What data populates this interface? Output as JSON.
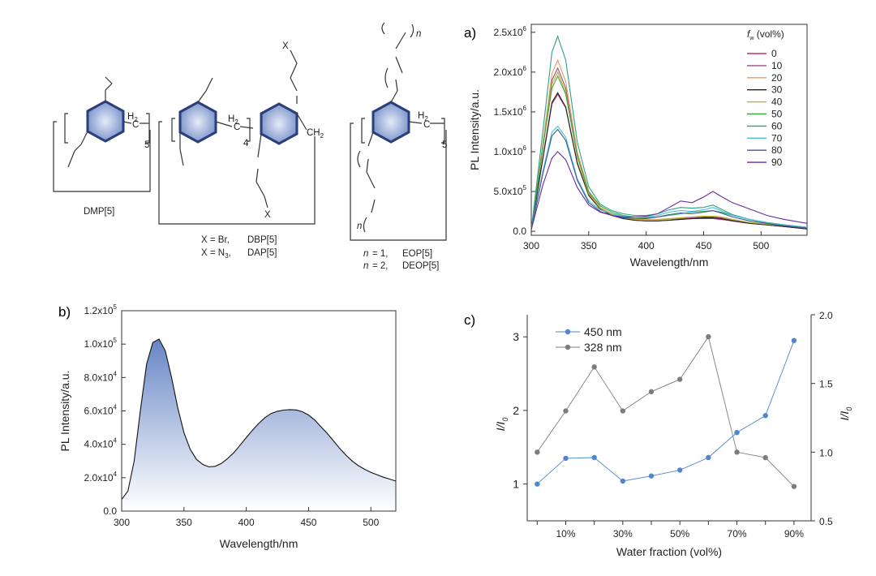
{
  "colors": {
    "ring_fill": "#9fb1d6",
    "ring_stroke": "#2a3f7a",
    "fill_gradient_top": "#5f7fc1",
    "series_450": "#4f86d0",
    "series_328": "#7d7d7d"
  },
  "structures": {
    "dmp": {
      "name": "DMP[5]",
      "subscript": "5",
      "h2": "H2",
      "h2_base": "H",
      "h2_sub": "2",
      "c": "C"
    },
    "dbp": {
      "subscript": "4",
      "h2_base": "H",
      "h2_sub": "2",
      "c": "C",
      "ch2": "CH2",
      "ch2_base": "CH",
      "ch2_sub": "2",
      "x": "X",
      "line1_x": "X = Br,",
      "line1_name": "DBP[5]",
      "line2_x_base": "X = N",
      "line2_x_sub": "3",
      "line2_x_end": ",",
      "line2_name": "DAP[5]"
    },
    "eop": {
      "subscript": "5",
      "n": "n",
      "h2_base": "H",
      "h2_sub": "2",
      "c": "C",
      "line1_n": "n",
      "line1_eq": "= 1,",
      "line1_name": "EOP[5]",
      "line2_n": "n",
      "line2_eq": "= 2,",
      "line2_name": "DEOP[5]"
    }
  },
  "panels": {
    "a_label": "a)",
    "b_label": "b)",
    "c_label": "c)"
  },
  "chart_data": [
    {
      "id": "a",
      "type": "line",
      "xlabel": "Wavelength/nm",
      "ylabel": "PL Intensity/a.u.",
      "xlim": [
        300,
        540
      ],
      "ylim": [
        -0.05,
        2.6
      ],
      "y_unit": "×10^6 a.u.",
      "x_ticks": [
        300,
        350,
        400,
        450,
        500
      ],
      "y_ticks": [
        {
          "v": 0.0,
          "base": "0.0",
          "exp": ""
        },
        {
          "v": 0.5,
          "base": "5.0x10",
          "exp": "5"
        },
        {
          "v": 1.0,
          "base": "1.0x10",
          "exp": "6"
        },
        {
          "v": 1.5,
          "base": "1.5x10",
          "exp": "6"
        },
        {
          "v": 2.0,
          "base": "2.0x10",
          "exp": "6"
        },
        {
          "v": 2.5,
          "base": "2.5x10",
          "exp": "6"
        }
      ],
      "legend": {
        "title_base": "f",
        "title_sub": "w",
        "title_rest": " (vol%)",
        "placement": "top-right"
      },
      "x": [
        300,
        310,
        318,
        323,
        330,
        340,
        350,
        360,
        370,
        380,
        390,
        400,
        410,
        420,
        430,
        440,
        450,
        458,
        465,
        475,
        490,
        505,
        520,
        540
      ],
      "series": [
        {
          "name": "0",
          "color": "#c0306a",
          "values": [
            0.02,
            0.9,
            1.6,
            1.72,
            1.55,
            0.85,
            0.45,
            0.28,
            0.2,
            0.16,
            0.14,
            0.13,
            0.13,
            0.14,
            0.15,
            0.16,
            0.16,
            0.16,
            0.15,
            0.13,
            0.1,
            0.08,
            0.06,
            0.03
          ]
        },
        {
          "name": "10",
          "color": "#a24a8a",
          "values": [
            0.02,
            1.05,
            1.9,
            2.05,
            1.8,
            0.95,
            0.48,
            0.29,
            0.21,
            0.17,
            0.15,
            0.14,
            0.14,
            0.15,
            0.16,
            0.17,
            0.18,
            0.18,
            0.17,
            0.14,
            0.11,
            0.08,
            0.06,
            0.03
          ]
        },
        {
          "name": "20",
          "color": "#d9a060",
          "values": [
            0.02,
            1.1,
            1.98,
            2.15,
            1.88,
            1.0,
            0.5,
            0.3,
            0.22,
            0.18,
            0.16,
            0.15,
            0.15,
            0.16,
            0.17,
            0.18,
            0.19,
            0.19,
            0.18,
            0.15,
            0.11,
            0.09,
            0.07,
            0.04
          ]
        },
        {
          "name": "30",
          "color": "#222222",
          "values": [
            0.02,
            0.92,
            1.62,
            1.74,
            1.56,
            0.86,
            0.45,
            0.28,
            0.2,
            0.16,
            0.14,
            0.13,
            0.13,
            0.14,
            0.15,
            0.16,
            0.17,
            0.17,
            0.16,
            0.13,
            0.1,
            0.08,
            0.06,
            0.03
          ]
        },
        {
          "name": "40",
          "color": "#b7b32a",
          "values": [
            0.02,
            1.05,
            1.85,
            2.0,
            1.75,
            0.93,
            0.47,
            0.29,
            0.21,
            0.17,
            0.15,
            0.14,
            0.14,
            0.15,
            0.17,
            0.18,
            0.19,
            0.19,
            0.18,
            0.15,
            0.11,
            0.09,
            0.07,
            0.04
          ]
        },
        {
          "name": "50",
          "color": "#3fa53f",
          "values": [
            0.02,
            1.05,
            1.8,
            1.95,
            1.72,
            0.95,
            0.5,
            0.32,
            0.24,
            0.2,
            0.18,
            0.17,
            0.18,
            0.2,
            0.22,
            0.24,
            0.25,
            0.26,
            0.24,
            0.2,
            0.15,
            0.11,
            0.08,
            0.05
          ]
        },
        {
          "name": "60",
          "color": "#2aa088",
          "values": [
            0.02,
            1.25,
            2.25,
            2.45,
            2.15,
            1.12,
            0.56,
            0.34,
            0.26,
            0.22,
            0.2,
            0.2,
            0.22,
            0.27,
            0.3,
            0.29,
            0.3,
            0.33,
            0.28,
            0.21,
            0.15,
            0.11,
            0.08,
            0.05
          ]
        },
        {
          "name": "70",
          "color": "#46c1d3",
          "values": [
            0.02,
            0.75,
            1.25,
            1.32,
            1.18,
            0.66,
            0.38,
            0.27,
            0.22,
            0.19,
            0.18,
            0.18,
            0.2,
            0.24,
            0.26,
            0.25,
            0.27,
            0.3,
            0.26,
            0.2,
            0.15,
            0.11,
            0.08,
            0.05
          ]
        },
        {
          "name": "80",
          "color": "#3c5a9a",
          "values": [
            0.02,
            0.72,
            1.2,
            1.28,
            1.14,
            0.64,
            0.36,
            0.25,
            0.2,
            0.17,
            0.16,
            0.16,
            0.18,
            0.21,
            0.23,
            0.22,
            0.24,
            0.26,
            0.23,
            0.18,
            0.13,
            0.1,
            0.07,
            0.04
          ]
        },
        {
          "name": "90",
          "color": "#6a2aa0",
          "values": [
            0.02,
            0.58,
            0.92,
            1.0,
            0.9,
            0.55,
            0.33,
            0.24,
            0.2,
            0.18,
            0.18,
            0.19,
            0.22,
            0.3,
            0.38,
            0.36,
            0.43,
            0.5,
            0.44,
            0.36,
            0.28,
            0.2,
            0.15,
            0.1
          ]
        }
      ]
    },
    {
      "id": "b",
      "type": "area",
      "xlabel": "Wavelength/nm",
      "ylabel": "PL Intensity/a.u.",
      "xlim": [
        300,
        520
      ],
      "ylim": [
        0,
        120000
      ],
      "x_ticks": [
        300,
        350,
        400,
        450,
        500
      ],
      "y_ticks": [
        {
          "v": 0,
          "base": "0.0",
          "exp": ""
        },
        {
          "v": 20000,
          "base": "2.0x10",
          "exp": "4"
        },
        {
          "v": 40000,
          "base": "4.0x10",
          "exp": "4"
        },
        {
          "v": 60000,
          "base": "6.0x10",
          "exp": "4"
        },
        {
          "v": 80000,
          "base": "8.0x10",
          "exp": "4"
        },
        {
          "v": 100000,
          "base": "1.0x10",
          "exp": "5"
        },
        {
          "v": 120000,
          "base": "1.2x10",
          "exp": "5"
        }
      ],
      "x": [
        300,
        305,
        310,
        315,
        320,
        325,
        330,
        335,
        340,
        345,
        350,
        355,
        360,
        365,
        370,
        375,
        380,
        385,
        390,
        395,
        400,
        405,
        410,
        415,
        420,
        425,
        430,
        435,
        440,
        445,
        450,
        455,
        460,
        465,
        470,
        475,
        480,
        485,
        490,
        495,
        500,
        505,
        510,
        515,
        520
      ],
      "values": [
        7000,
        12000,
        30000,
        60000,
        88000,
        101000,
        103000,
        96000,
        80000,
        62000,
        47000,
        37000,
        31000,
        28000,
        26500,
        26800,
        28500,
        31500,
        35000,
        39500,
        44000,
        48500,
        52500,
        56000,
        58500,
        59800,
        60500,
        60800,
        60600,
        59500,
        57500,
        54500,
        50500,
        46500,
        42000,
        37500,
        33500,
        30000,
        27200,
        25000,
        23200,
        21700,
        20300,
        19200,
        18000
      ]
    },
    {
      "id": "c",
      "type": "scatter",
      "xlabel": "Water fraction (vol%)",
      "ylabel_left_base": "I/I",
      "ylabel_left_sub": "0",
      "ylabel_right_base": "I/I",
      "ylabel_right_sub": "0",
      "x": [
        0,
        10,
        20,
        30,
        40,
        50,
        60,
        70,
        80,
        90
      ],
      "x_ticks": [
        10,
        30,
        50,
        70,
        90
      ],
      "x_tick_labels": [
        "10%",
        "30%",
        "50%",
        "70%",
        "90%"
      ],
      "xlim": [
        -3.5,
        96
      ],
      "ylim_left": [
        0.5,
        3.3
      ],
      "ylim_right": [
        0.5,
        2.0
      ],
      "y_ticks_left": [
        "1",
        "2",
        "3"
      ],
      "y_ticks_right": [
        "0.5",
        "1.0",
        "1.5",
        "2.0"
      ],
      "legend_placement": "top-left",
      "series": [
        {
          "name": "450 nm",
          "axis": "left",
          "color": "#4f86d0",
          "values": [
            1.0,
            1.35,
            1.36,
            1.04,
            1.11,
            1.19,
            1.36,
            1.7,
            1.93,
            2.95
          ]
        },
        {
          "name": "328 nm",
          "axis": "right",
          "color": "#7d7d7d",
          "values": [
            1.0,
            1.3,
            1.62,
            1.3,
            1.44,
            1.53,
            1.84,
            1.0,
            0.96,
            0.75
          ]
        }
      ]
    }
  ]
}
